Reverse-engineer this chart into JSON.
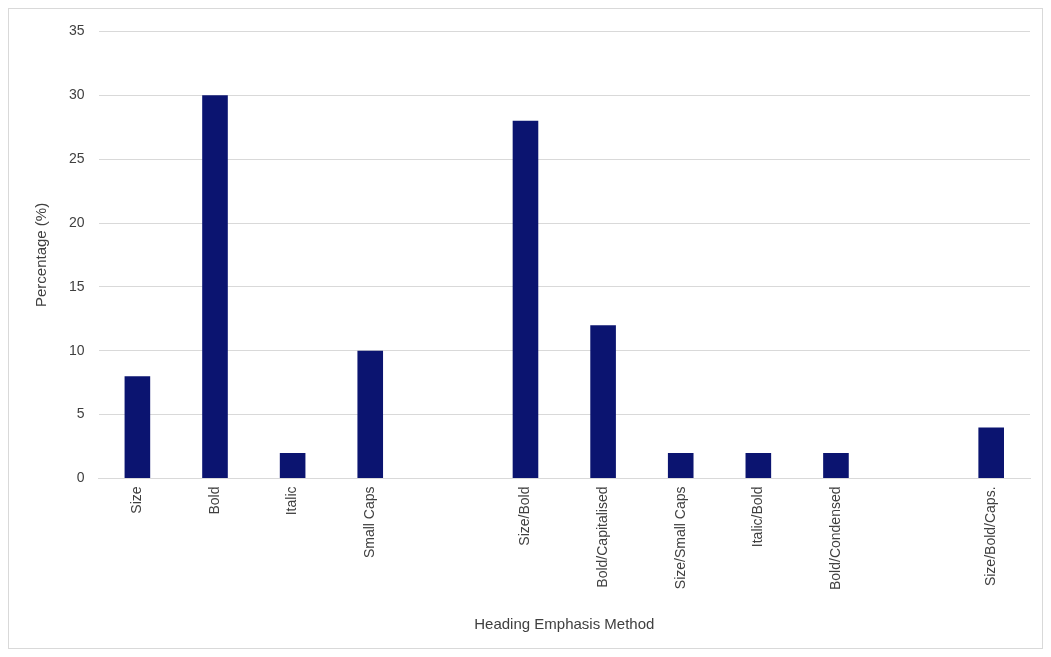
{
  "chart_data": {
    "type": "bar",
    "xlabel": "Heading Emphasis Method",
    "ylabel": "Percentage (%)",
    "categories": [
      "Size",
      "Bold",
      "Italic",
      "Small Caps",
      null,
      "Size/Bold",
      "Bold/Capitalised",
      "Size/Small Caps",
      "Italic/Bold",
      "Bold/Condensed",
      null,
      "Size/Bold/Caps."
    ],
    "values": [
      8,
      30,
      2,
      10,
      null,
      28,
      12,
      2,
      2,
      2,
      null,
      4
    ],
    "color": "#0b1470",
    "ylim": [
      0,
      35
    ],
    "yticks": [
      0,
      5,
      10,
      15,
      20,
      25,
      30,
      35
    ],
    "grid": "y",
    "legend": false
  }
}
